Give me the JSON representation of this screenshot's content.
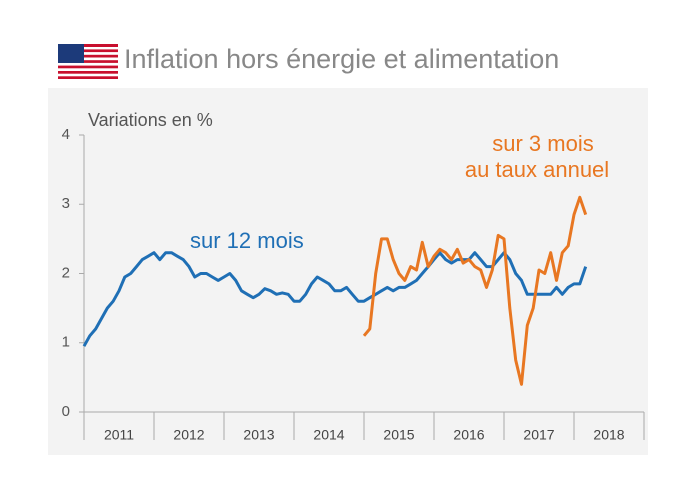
{
  "chart_data": {
    "type": "line",
    "title": "Inflation hors énergie et alimentation",
    "y_label": "Variations en %",
    "x": [
      2011,
      2011.083,
      2011.167,
      2011.25,
      2011.333,
      2011.417,
      2011.5,
      2011.583,
      2011.667,
      2011.75,
      2011.833,
      2011.917,
      2012,
      2012.083,
      2012.167,
      2012.25,
      2012.333,
      2012.417,
      2012.5,
      2012.583,
      2012.667,
      2012.75,
      2012.833,
      2012.917,
      2013,
      2013.083,
      2013.167,
      2013.25,
      2013.333,
      2013.417,
      2013.5,
      2013.583,
      2013.667,
      2013.75,
      2013.833,
      2013.917,
      2014,
      2014.083,
      2014.167,
      2014.25,
      2014.333,
      2014.417,
      2014.5,
      2014.583,
      2014.667,
      2014.75,
      2014.833,
      2014.917,
      2015,
      2015.083,
      2015.167,
      2015.25,
      2015.333,
      2015.417,
      2015.5,
      2015.583,
      2015.667,
      2015.75,
      2015.833,
      2015.917,
      2016,
      2016.083,
      2016.167,
      2016.25,
      2016.333,
      2016.417,
      2016.5,
      2016.583,
      2016.667,
      2016.75,
      2016.833,
      2016.917,
      2017,
      2017.083,
      2017.167,
      2017.25,
      2017.333,
      2017.417,
      2017.5,
      2017.583,
      2017.667,
      2017.75,
      2017.833,
      2017.917,
      2018,
      2018.083,
      2018.167
    ],
    "series": [
      {
        "name": "sur 12 mois",
        "color": "#1f6fb5",
        "values": [
          0.95,
          1.1,
          1.2,
          1.35,
          1.5,
          1.6,
          1.75,
          1.95,
          2.0,
          2.1,
          2.2,
          2.25,
          2.3,
          2.2,
          2.3,
          2.3,
          2.25,
          2.2,
          2.1,
          1.95,
          2.0,
          2.0,
          1.95,
          1.9,
          1.95,
          2.0,
          1.9,
          1.75,
          1.7,
          1.65,
          1.7,
          1.78,
          1.75,
          1.7,
          1.72,
          1.7,
          1.6,
          1.6,
          1.7,
          1.85,
          1.95,
          1.9,
          1.85,
          1.75,
          1.75,
          1.8,
          1.7,
          1.6,
          1.6,
          1.65,
          1.7,
          1.75,
          1.8,
          1.75,
          1.8,
          1.8,
          1.85,
          1.9,
          2.0,
          2.1,
          2.2,
          2.3,
          2.2,
          2.15,
          2.2,
          2.2,
          2.2,
          2.3,
          2.2,
          2.1,
          2.1,
          2.2,
          2.3,
          2.2,
          2.0,
          1.9,
          1.7,
          1.7,
          1.7,
          1.7,
          1.7,
          1.8,
          1.7,
          1.8,
          1.85,
          1.85,
          2.1
        ]
      },
      {
        "name": "sur 3 mois au taux annuel",
        "color": "#e87722",
        "values": [
          null,
          null,
          null,
          null,
          null,
          null,
          null,
          null,
          null,
          null,
          null,
          null,
          null,
          null,
          null,
          null,
          null,
          null,
          null,
          null,
          null,
          null,
          null,
          null,
          null,
          null,
          null,
          null,
          null,
          null,
          null,
          null,
          null,
          null,
          null,
          null,
          null,
          null,
          null,
          null,
          null,
          null,
          null,
          null,
          null,
          null,
          null,
          null,
          1.1,
          1.2,
          2.0,
          2.5,
          2.5,
          2.2,
          2.0,
          1.9,
          2.1,
          2.05,
          2.45,
          2.1,
          2.25,
          2.35,
          2.3,
          2.2,
          2.35,
          2.15,
          2.2,
          2.1,
          2.05,
          1.8,
          2.05,
          2.55,
          2.5,
          1.5,
          0.75,
          0.4,
          1.25,
          1.5,
          2.05,
          2.0,
          2.3,
          1.9,
          2.3,
          2.4,
          2.85,
          3.1,
          2.85
        ]
      }
    ],
    "annotations": [
      {
        "text": "sur 12 mois",
        "color": "#1f6fb5"
      },
      {
        "text": "sur 3 mois",
        "color": "#e87722"
      },
      {
        "text": "au taux annuel",
        "color": "#e87722"
      }
    ],
    "xlim": [
      2011,
      2019
    ],
    "xticks": [
      {
        "value": 2011.5,
        "label": "2011"
      },
      {
        "value": 2012.5,
        "label": "2012"
      },
      {
        "value": 2013.5,
        "label": "2013"
      },
      {
        "value": 2014.5,
        "label": "2014"
      },
      {
        "value": 2015.5,
        "label": "2015"
      },
      {
        "value": 2016.5,
        "label": "2016"
      },
      {
        "value": 2017.5,
        "label": "2017"
      },
      {
        "value": 2018.5,
        "label": "2018"
      }
    ],
    "ylim": [
      0,
      4
    ],
    "yticks": [
      0,
      1,
      2,
      3,
      4
    ],
    "grid": false
  }
}
